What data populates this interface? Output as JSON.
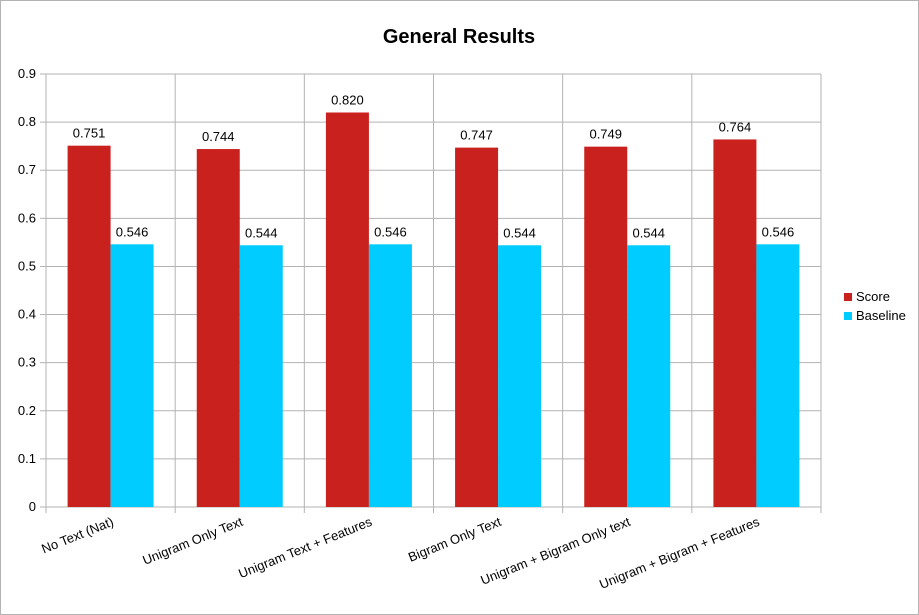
{
  "chart_data": {
    "type": "bar",
    "title": "General Results",
    "xlabel": "",
    "ylabel": "",
    "ylim": [
      0,
      0.9
    ],
    "ytick_step": 0.1,
    "yticks": [
      "0",
      "0.1",
      "0.2",
      "0.3",
      "0.4",
      "0.5",
      "0.6",
      "0.7",
      "0.8",
      "0.9"
    ],
    "grid": true,
    "legend_position": "right",
    "categories": [
      "No Text (Nat)",
      "Unigram Only Text",
      "Unigram Text + Features",
      "Bigram Only Text",
      "Unigram + Bigram Only text",
      "Unigram + Bigram + Features"
    ],
    "series": [
      {
        "name": "Score",
        "color": "#c9211e",
        "values": [
          0.751,
          0.744,
          0.82,
          0.747,
          0.749,
          0.764
        ],
        "labels": [
          "0.751",
          "0.744",
          "0.820",
          "0.747",
          "0.749",
          "0.764"
        ]
      },
      {
        "name": "Baseline",
        "color": "#00ccff",
        "values": [
          0.546,
          0.544,
          0.546,
          0.544,
          0.544,
          0.546
        ],
        "labels": [
          "0.546",
          "0.544",
          "0.546",
          "0.544",
          "0.544",
          "0.546"
        ]
      }
    ]
  }
}
